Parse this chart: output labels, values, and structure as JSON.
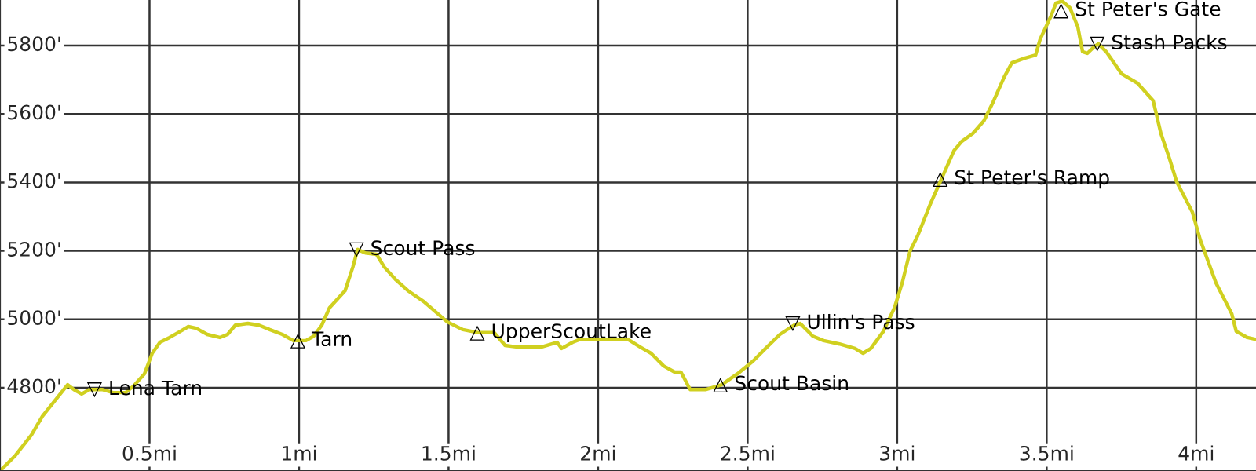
{
  "chart_data": {
    "type": "line",
    "x": [
      0,
      0.052,
      0.105,
      0.142,
      0.184,
      0.226,
      0.247,
      0.273,
      0.299,
      0.341,
      0.378,
      0.42,
      0.446,
      0.483,
      0.509,
      0.535,
      0.567,
      0.603,
      0.63,
      0.656,
      0.693,
      0.735,
      0.761,
      0.787,
      0.829,
      0.866,
      0.902,
      0.944,
      0.981,
      1.023,
      1.049,
      1.076,
      1.102,
      1.154,
      1.18,
      1.196,
      1.222,
      1.259,
      1.285,
      1.322,
      1.364,
      1.417,
      1.495,
      1.548,
      1.6,
      1.653,
      1.689,
      1.731,
      1.81,
      1.863,
      1.878,
      1.915,
      1.941,
      2.099,
      2.141,
      2.177,
      2.219,
      2.256,
      2.277,
      2.308,
      2.361,
      2.413,
      2.466,
      2.518,
      2.56,
      2.608,
      2.655,
      2.676,
      2.718,
      2.754,
      2.807,
      2.859,
      2.886,
      2.912,
      2.954,
      2.991,
      3.017,
      3.043,
      3.069,
      3.111,
      3.148,
      3.19,
      3.216,
      3.253,
      3.29,
      3.321,
      3.358,
      3.384,
      3.426,
      3.463,
      3.478,
      3.515,
      3.531,
      3.552,
      3.578,
      3.604,
      3.62,
      3.636,
      3.657,
      3.673,
      3.699,
      3.751,
      3.804,
      3.856,
      3.882,
      3.909,
      3.935,
      3.987,
      4.014,
      4.066,
      4.119,
      4.134,
      4.171,
      4.197
    ],
    "series": [
      {
        "color": "#d0d020",
        "values": [
          4557,
          4603,
          4662,
          4717,
          4763,
          4809,
          4795,
          4782,
          4795,
          4795,
          4786,
          4786,
          4805,
          4841,
          4901,
          4933,
          4947,
          4965,
          4979,
          4974,
          4956,
          4947,
          4956,
          4983,
          4988,
          4983,
          4970,
          4956,
          4938,
          4938,
          4951,
          4983,
          5034,
          5084,
          5153,
          5204,
          5194,
          5190,
          5153,
          5117,
          5084,
          5052,
          4993,
          4970,
          4961,
          4961,
          4924,
          4919,
          4919,
          4933,
          4915,
          4933,
          4942,
          4942,
          4919,
          4901,
          4864,
          4846,
          4846,
          4795,
          4795,
          4809,
          4841,
          4878,
          4915,
          4956,
          4983,
          4988,
          4951,
          4938,
          4928,
          4915,
          4901,
          4915,
          4965,
          5034,
          5107,
          5199,
          5245,
          5337,
          5410,
          5493,
          5520,
          5543,
          5580,
          5635,
          5708,
          5750,
          5763,
          5772,
          5818,
          5887,
          5924,
          5930,
          5910,
          5855,
          5782,
          5777,
          5795,
          5805,
          5782,
          5717,
          5690,
          5639,
          5543,
          5474,
          5401,
          5314,
          5231,
          5107,
          5016,
          4965,
          4947,
          4942
        ]
      }
    ],
    "xlim": [
      0,
      4.2
    ],
    "ylim": [
      4557,
      5933
    ],
    "xticks": [
      {
        "value": 0.5,
        "label": "0.5mi"
      },
      {
        "value": 1,
        "label": "1mi"
      },
      {
        "value": 1.5,
        "label": "1.5mi"
      },
      {
        "value": 2,
        "label": "2mi"
      },
      {
        "value": 2.5,
        "label": "2.5mi"
      },
      {
        "value": 3,
        "label": "3mi"
      },
      {
        "value": 3.5,
        "label": "3.5mi"
      },
      {
        "value": 4,
        "label": "4mi"
      }
    ],
    "yticks": [
      {
        "value": 4800,
        "label": "4800'"
      },
      {
        "value": 5000,
        "label": "5000'"
      },
      {
        "value": 5200,
        "label": "5200'"
      },
      {
        "value": 5400,
        "label": "5400'"
      },
      {
        "value": 5600,
        "label": "5600'"
      },
      {
        "value": 5800,
        "label": "5800'"
      }
    ],
    "grid": true,
    "marker": "none",
    "line_style": "solid",
    "annotations": [
      {
        "text": "▽ Lena Tarn",
        "x": 0.32,
        "y": 4795
      },
      {
        "text": "△ Tarn",
        "x": 1.0,
        "y": 4938
      },
      {
        "text": "▽ Scout Pass",
        "x": 1.196,
        "y": 5204
      },
      {
        "text": "△ UpperScoutLake",
        "x": 1.6,
        "y": 4961
      },
      {
        "text": "△ Scout Basin",
        "x": 2.413,
        "y": 4809
      },
      {
        "text": "▽ Ullin's Pass",
        "x": 2.655,
        "y": 4988
      },
      {
        "text": "△ St Peter's Ramp",
        "x": 3.148,
        "y": 5410
      },
      {
        "text": "△ St Peter's Gate",
        "x": 3.552,
        "y": 5930
      },
      {
        "text": "▽ Stash Packs",
        "x": 3.673,
        "y": 5805
      }
    ]
  }
}
